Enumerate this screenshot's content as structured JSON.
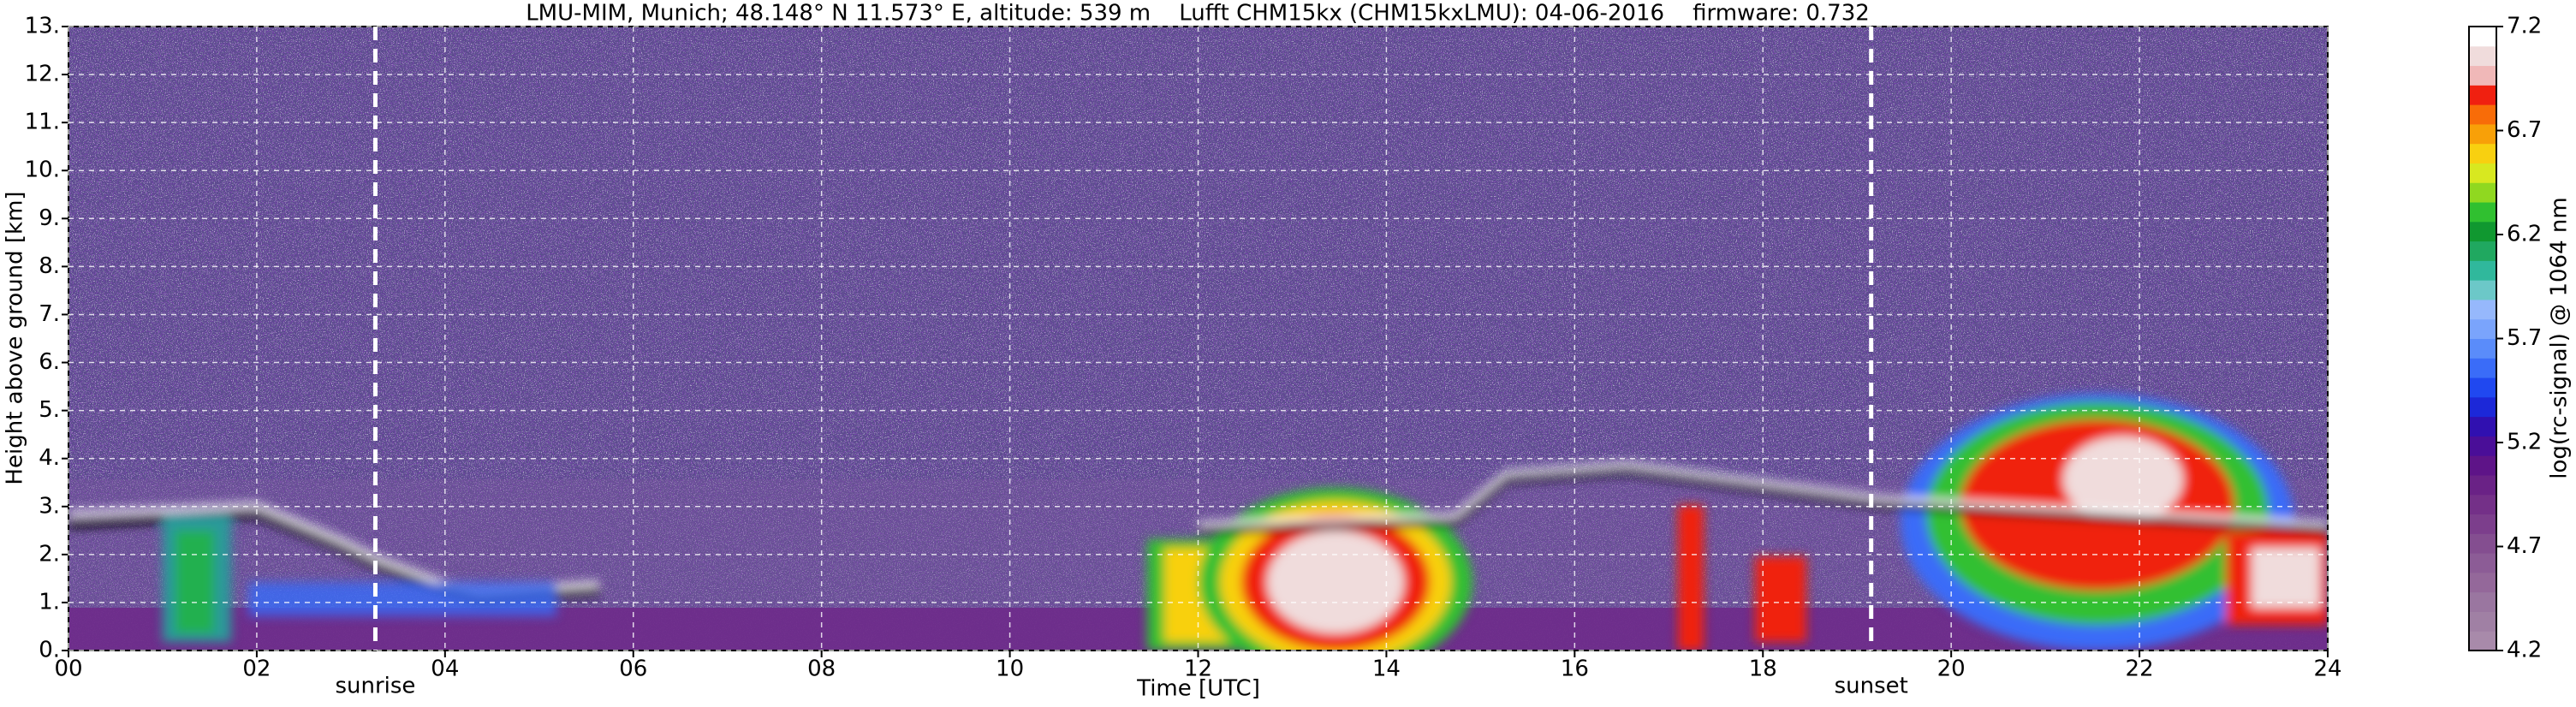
{
  "chart_data": {
    "type": "heatmap",
    "title": "LMU-MIM, Munich; 48.148° N 11.573° E, altitude: 539 m    Lufft CHM15kx (CHM15kxLMU): 04-06-2016    firmware: 0.732",
    "x_label": "Time [UTC]",
    "y_label": "Height above ground [km]",
    "xlim": [
      0,
      24
    ],
    "xticks": [
      {
        "value": 0,
        "label": "00"
      },
      {
        "value": 2,
        "label": "02"
      },
      {
        "value": 4,
        "label": "04"
      },
      {
        "value": 6,
        "label": "06"
      },
      {
        "value": 8,
        "label": "08"
      },
      {
        "value": 10,
        "label": "10"
      },
      {
        "value": 12,
        "label": "12"
      },
      {
        "value": 14,
        "label": "14"
      },
      {
        "value": 16,
        "label": "16"
      },
      {
        "value": 18,
        "label": "18"
      },
      {
        "value": 20,
        "label": "20"
      },
      {
        "value": 22,
        "label": "22"
      },
      {
        "value": 24,
        "label": "24"
      }
    ],
    "ylim": [
      0,
      13
    ],
    "yticks": [
      {
        "value": 0,
        "label": "0."
      },
      {
        "value": 1,
        "label": "1."
      },
      {
        "value": 2,
        "label": "2."
      },
      {
        "value": 3,
        "label": "3."
      },
      {
        "value": 4,
        "label": "4."
      },
      {
        "value": 5,
        "label": "5."
      },
      {
        "value": 6,
        "label": "6."
      },
      {
        "value": 7,
        "label": "7."
      },
      {
        "value": 8,
        "label": "8."
      },
      {
        "value": 9,
        "label": "9."
      },
      {
        "value": 10,
        "label": "10."
      },
      {
        "value": 11,
        "label": "11."
      },
      {
        "value": 12,
        "label": "12."
      },
      {
        "value": 13,
        "label": "13."
      }
    ],
    "grid": true,
    "annotations": [
      {
        "text": "sunrise",
        "x": 3.26
      },
      {
        "text": "sunset",
        "x": 19.15
      }
    ],
    "colorbar": {
      "label": "log(rc-signal) @ 1064 nm",
      "lim": [
        4.2,
        7.2
      ],
      "ticks": [
        4.2,
        4.7,
        5.2,
        5.7,
        6.2,
        6.7,
        7.2
      ],
      "colors": [
        "#a88aaa",
        "#a080a4",
        "#9a76a0",
        "#94689a",
        "#8c5c96",
        "#844e90",
        "#7c3e8c",
        "#743088",
        "#6a2286",
        "#5e1488",
        "#4a0e98",
        "#3010b0",
        "#1c28d8",
        "#2048f0",
        "#3a6cf8",
        "#5a8cfa",
        "#7aa4fc",
        "#96b8fc",
        "#6cc8c8",
        "#30b89c",
        "#20a860",
        "#109830",
        "#30c030",
        "#90d820",
        "#d8e820",
        "#f8d010",
        "#f8a008",
        "#f86c08",
        "#f02010",
        "#f0b8b8",
        "#f0dcdc",
        "#ffffff"
      ]
    }
  }
}
